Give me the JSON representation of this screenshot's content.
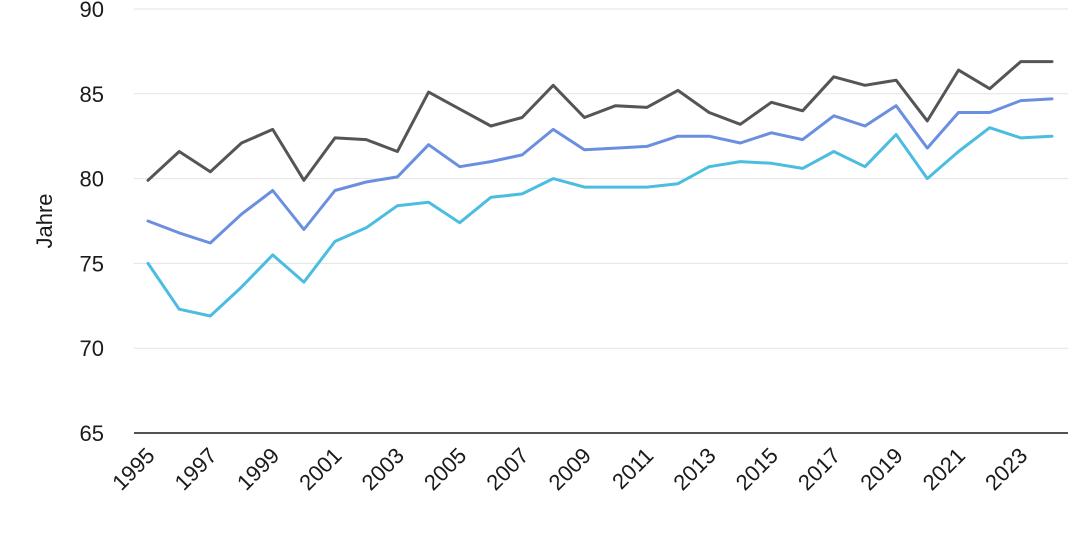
{
  "chart_data": {
    "type": "line",
    "title": "",
    "xlabel": "",
    "ylabel": "Jahre",
    "ylim": [
      65,
      90
    ],
    "yticks": [
      65,
      70,
      75,
      80,
      85,
      90
    ],
    "grid": true,
    "legend": "none",
    "x": [
      1995,
      1996,
      1997,
      1998,
      1999,
      2000,
      2001,
      2002,
      2003,
      2004,
      2005,
      2006,
      2007,
      2008,
      2009,
      2010,
      2011,
      2012,
      2013,
      2014,
      2015,
      2016,
      2017,
      2018,
      2019,
      2020,
      2021,
      2022,
      2023,
      2024
    ],
    "xtick_labels": [
      "1995",
      "1997",
      "1999",
      "2001",
      "2003",
      "2005",
      "2007",
      "2009",
      "2011",
      "2013",
      "2015",
      "2017",
      "2019",
      "2021",
      "2023"
    ],
    "series": [
      {
        "color": "#555555",
        "values": [
          79.9,
          81.6,
          80.4,
          82.1,
          82.9,
          79.9,
          82.4,
          82.3,
          81.6,
          85.1,
          84.1,
          83.1,
          83.6,
          85.5,
          83.6,
          84.3,
          84.2,
          85.2,
          83.9,
          83.2,
          84.5,
          84.0,
          86.0,
          85.5,
          85.8,
          83.4,
          86.4,
          85.3,
          86.9,
          86.9
        ]
      },
      {
        "color": "#6b8fe0",
        "values": [
          77.5,
          76.8,
          76.2,
          77.9,
          79.3,
          77.0,
          79.3,
          79.8,
          80.1,
          82.0,
          80.7,
          81.0,
          81.4,
          82.9,
          81.7,
          81.8,
          81.9,
          82.5,
          82.5,
          82.1,
          82.7,
          82.3,
          83.7,
          83.1,
          84.3,
          81.8,
          83.9,
          83.9,
          84.6,
          84.7
        ]
      },
      {
        "color": "#4bbde0",
        "values": [
          75.0,
          72.3,
          71.9,
          73.6,
          75.5,
          73.9,
          76.3,
          77.1,
          78.4,
          78.6,
          77.4,
          78.9,
          79.1,
          80.0,
          79.5,
          79.5,
          79.5,
          79.7,
          80.7,
          81.0,
          80.9,
          80.6,
          81.6,
          80.7,
          82.6,
          80.0,
          81.6,
          83.0,
          82.4,
          82.5
        ]
      }
    ]
  }
}
